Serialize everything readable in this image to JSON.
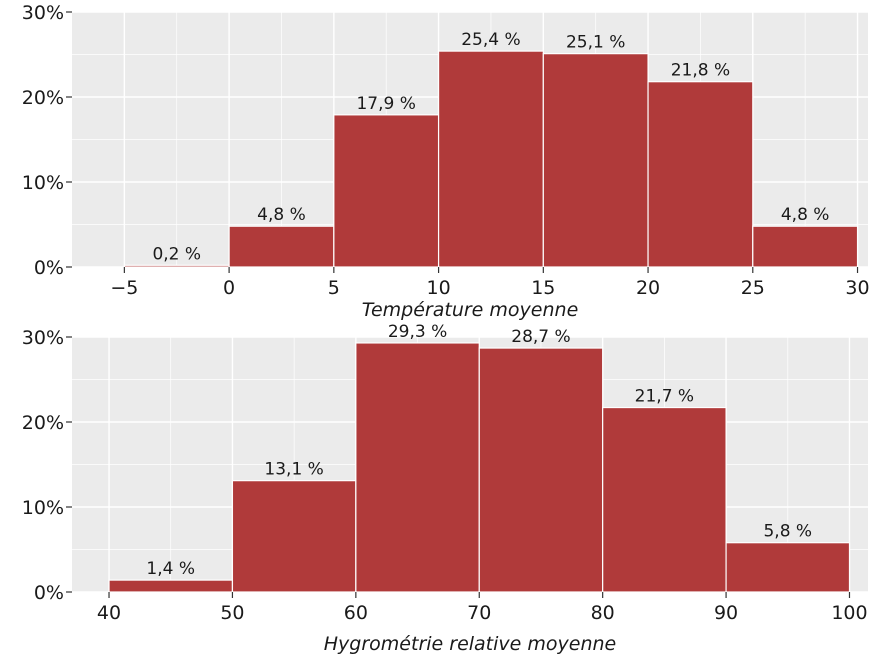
{
  "chart_data": [
    {
      "type": "bar",
      "xlabel": "Température moyenne",
      "ylabel": "",
      "x_ticks": [
        "−5",
        "0",
        "5",
        "10",
        "15",
        "20",
        "25",
        "30"
      ],
      "y_ticks": [
        "0%",
        "10%",
        "20%",
        "30%"
      ],
      "xlim": [
        -7.5,
        30.5
      ],
      "ylim": [
        0,
        30
      ],
      "grid": true,
      "bins": [
        {
          "start": -5,
          "end": 0,
          "value": 0.2,
          "label": "0,2 %"
        },
        {
          "start": 0,
          "end": 5,
          "value": 4.8,
          "label": "4,8 %"
        },
        {
          "start": 5,
          "end": 10,
          "value": 17.9,
          "label": "17,9 %"
        },
        {
          "start": 10,
          "end": 15,
          "value": 25.4,
          "label": "25,4 %"
        },
        {
          "start": 15,
          "end": 20,
          "value": 25.1,
          "label": "25,1 %"
        },
        {
          "start": 20,
          "end": 25,
          "value": 21.8,
          "label": "21,8 %"
        },
        {
          "start": 25,
          "end": 30,
          "value": 4.8,
          "label": "4,8 %"
        }
      ],
      "bar_color": "#b03a3a"
    },
    {
      "type": "bar",
      "xlabel": "Hygrométrie relative moyenne",
      "ylabel": "",
      "x_ticks": [
        "40",
        "50",
        "60",
        "70",
        "80",
        "90",
        "100"
      ],
      "y_ticks": [
        "0%",
        "10%",
        "20%",
        "30%"
      ],
      "xlim": [
        37,
        101.5
      ],
      "ylim": [
        0,
        30
      ],
      "grid": true,
      "bins": [
        {
          "start": 40,
          "end": 50,
          "value": 1.4,
          "label": "1,4 %"
        },
        {
          "start": 50,
          "end": 60,
          "value": 13.1,
          "label": "13,1 %"
        },
        {
          "start": 60,
          "end": 70,
          "value": 29.3,
          "label": "29,3 %"
        },
        {
          "start": 70,
          "end": 80,
          "value": 28.7,
          "label": "28,7 %"
        },
        {
          "start": 80,
          "end": 90,
          "value": 21.7,
          "label": "21,7 %"
        },
        {
          "start": 90,
          "end": 100,
          "value": 5.8,
          "label": "5,8 %"
        }
      ],
      "bar_color": "#b03a3a"
    }
  ]
}
